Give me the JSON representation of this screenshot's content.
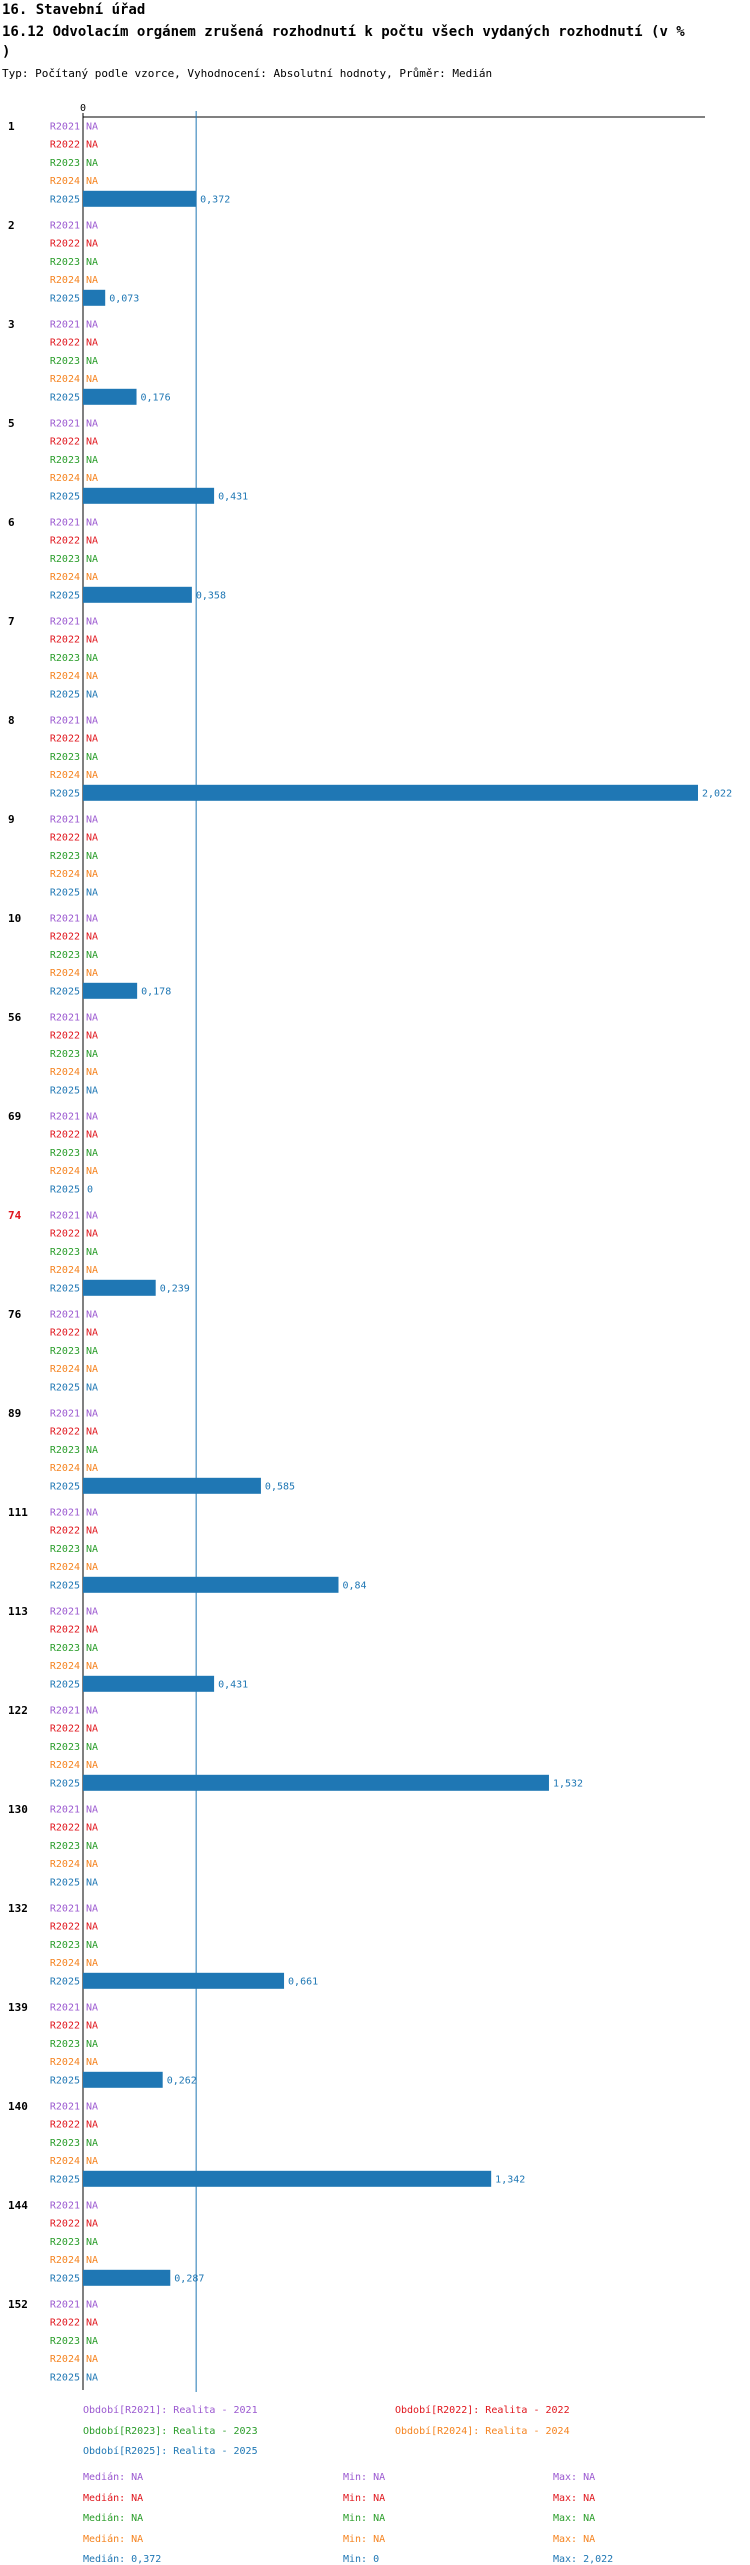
{
  "header": {
    "section_title": "16. Stavební úřad",
    "chart_title_line1": "16.12 Odvolacím orgánem zrušená rozhodnutí k počtu všech vydaných rozhodnutí (v %",
    "chart_title_line2": ")",
    "subtitle": "Typ: Počítaný podle vzorce, Vyhodnocení: Absolutní hodnoty, Průměr: Medián"
  },
  "colors": {
    "R2021": "#9b59d0",
    "R2022": "#e0161d",
    "R2023": "#2a9d2a",
    "R2024": "#f5831f",
    "R2025": "#1f77b4",
    "highlight_category": "#e0161d"
  },
  "chart_data": {
    "type": "bar",
    "orientation": "horizontal",
    "xlim": [
      0,
      2.022
    ],
    "x_tick_label": "0",
    "median_line_value": 0.372,
    "series_names": [
      "R2021",
      "R2022",
      "R2023",
      "R2024",
      "R2025"
    ],
    "na_label": "NA",
    "categories": [
      {
        "label": "1",
        "highlight": false,
        "values": [
          null,
          null,
          null,
          null,
          0.372
        ],
        "value_labels": [
          "NA",
          "NA",
          "NA",
          "NA",
          "0,372"
        ]
      },
      {
        "label": "2",
        "highlight": false,
        "values": [
          null,
          null,
          null,
          null,
          0.073
        ],
        "value_labels": [
          "NA",
          "NA",
          "NA",
          "NA",
          "0,073"
        ]
      },
      {
        "label": "3",
        "highlight": false,
        "values": [
          null,
          null,
          null,
          null,
          0.176
        ],
        "value_labels": [
          "NA",
          "NA",
          "NA",
          "NA",
          "0,176"
        ]
      },
      {
        "label": "5",
        "highlight": false,
        "values": [
          null,
          null,
          null,
          null,
          0.431
        ],
        "value_labels": [
          "NA",
          "NA",
          "NA",
          "NA",
          "0,431"
        ]
      },
      {
        "label": "6",
        "highlight": false,
        "values": [
          null,
          null,
          null,
          null,
          0.358
        ],
        "value_labels": [
          "NA",
          "NA",
          "NA",
          "NA",
          "0,358"
        ]
      },
      {
        "label": "7",
        "highlight": false,
        "values": [
          null,
          null,
          null,
          null,
          null
        ],
        "value_labels": [
          "NA",
          "NA",
          "NA",
          "NA",
          "NA"
        ]
      },
      {
        "label": "8",
        "highlight": false,
        "values": [
          null,
          null,
          null,
          null,
          2.022
        ],
        "value_labels": [
          "NA",
          "NA",
          "NA",
          "NA",
          "2,022"
        ]
      },
      {
        "label": "9",
        "highlight": false,
        "values": [
          null,
          null,
          null,
          null,
          null
        ],
        "value_labels": [
          "NA",
          "NA",
          "NA",
          "NA",
          "NA"
        ]
      },
      {
        "label": "10",
        "highlight": false,
        "values": [
          null,
          null,
          null,
          null,
          0.178
        ],
        "value_labels": [
          "NA",
          "NA",
          "NA",
          "NA",
          "0,178"
        ]
      },
      {
        "label": "56",
        "highlight": false,
        "values": [
          null,
          null,
          null,
          null,
          null
        ],
        "value_labels": [
          "NA",
          "NA",
          "NA",
          "NA",
          "NA"
        ]
      },
      {
        "label": "69",
        "highlight": false,
        "values": [
          null,
          null,
          null,
          null,
          0
        ],
        "value_labels": [
          "NA",
          "NA",
          "NA",
          "NA",
          "0"
        ]
      },
      {
        "label": "74",
        "highlight": true,
        "values": [
          null,
          null,
          null,
          null,
          0.239
        ],
        "value_labels": [
          "NA",
          "NA",
          "NA",
          "NA",
          "0,239"
        ]
      },
      {
        "label": "76",
        "highlight": false,
        "values": [
          null,
          null,
          null,
          null,
          null
        ],
        "value_labels": [
          "NA",
          "NA",
          "NA",
          "NA",
          "NA"
        ]
      },
      {
        "label": "89",
        "highlight": false,
        "values": [
          null,
          null,
          null,
          null,
          0.585
        ],
        "value_labels": [
          "NA",
          "NA",
          "NA",
          "NA",
          "0,585"
        ]
      },
      {
        "label": "111",
        "highlight": false,
        "values": [
          null,
          null,
          null,
          null,
          0.84
        ],
        "value_labels": [
          "NA",
          "NA",
          "NA",
          "NA",
          "0,84"
        ]
      },
      {
        "label": "113",
        "highlight": false,
        "values": [
          null,
          null,
          null,
          null,
          0.431
        ],
        "value_labels": [
          "NA",
          "NA",
          "NA",
          "NA",
          "0,431"
        ]
      },
      {
        "label": "122",
        "highlight": false,
        "values": [
          null,
          null,
          null,
          null,
          1.532
        ],
        "value_labels": [
          "NA",
          "NA",
          "NA",
          "NA",
          "1,532"
        ]
      },
      {
        "label": "130",
        "highlight": false,
        "values": [
          null,
          null,
          null,
          null,
          null
        ],
        "value_labels": [
          "NA",
          "NA",
          "NA",
          "NA",
          "NA"
        ]
      },
      {
        "label": "132",
        "highlight": false,
        "values": [
          null,
          null,
          null,
          null,
          0.661
        ],
        "value_labels": [
          "NA",
          "NA",
          "NA",
          "NA",
          "0,661"
        ]
      },
      {
        "label": "139",
        "highlight": false,
        "values": [
          null,
          null,
          null,
          null,
          0.262
        ],
        "value_labels": [
          "NA",
          "NA",
          "NA",
          "NA",
          "0,262"
        ]
      },
      {
        "label": "140",
        "highlight": false,
        "values": [
          null,
          null,
          null,
          null,
          1.342
        ],
        "value_labels": [
          "NA",
          "NA",
          "NA",
          "NA",
          "1,342"
        ]
      },
      {
        "label": "144",
        "highlight": false,
        "values": [
          null,
          null,
          null,
          null,
          0.287
        ],
        "value_labels": [
          "NA",
          "NA",
          "NA",
          "NA",
          "0,287"
        ]
      },
      {
        "label": "152",
        "highlight": false,
        "values": [
          null,
          null,
          null,
          null,
          null
        ],
        "value_labels": [
          "NA",
          "NA",
          "NA",
          "NA",
          "NA"
        ]
      }
    ]
  },
  "legend": {
    "items": [
      {
        "key": "R2021",
        "text": "Období[R2021]: Realita - 2021"
      },
      {
        "key": "R2022",
        "text": "Období[R2022]: Realita - 2022"
      },
      {
        "key": "R2023",
        "text": "Období[R2023]: Realita - 2023"
      },
      {
        "key": "R2024",
        "text": "Období[R2024]: Realita - 2024"
      },
      {
        "key": "R2025",
        "text": "Období[R2025]: Realita - 2025"
      }
    ],
    "stats": [
      {
        "key": "R2021",
        "median": "Medián: NA",
        "min": "Min: NA",
        "max": "Max: NA"
      },
      {
        "key": "R2022",
        "median": "Medián: NA",
        "min": "Min: NA",
        "max": "Max: NA"
      },
      {
        "key": "R2023",
        "median": "Medián: NA",
        "min": "Min: NA",
        "max": "Max: NA"
      },
      {
        "key": "R2024",
        "median": "Medián: NA",
        "min": "Min: NA",
        "max": "Max: NA"
      },
      {
        "key": "R2025",
        "median": "Medián: 0,372",
        "min": "Min: 0",
        "max": "Max: 2,022"
      }
    ]
  }
}
